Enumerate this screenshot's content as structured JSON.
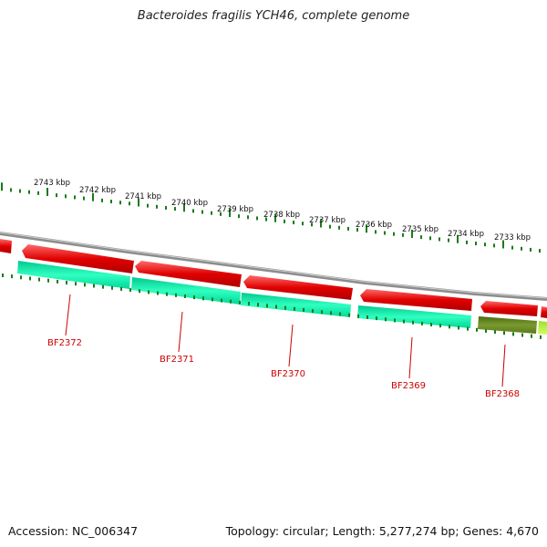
{
  "title": "Bacteroides fragilis YCH46, complete genome",
  "accession": "Accession: NC_006347",
  "summary": "Topology: circular; Length: 5,277,274 bp; Genes: 4,670",
  "colors": {
    "backbone": "#8c8c8c",
    "forward_cds": "#ee0000",
    "reverse_cds": "#00e8a0",
    "reverse_cds_alt": "#6a8a20",
    "tick": "#1a7a1a",
    "gene_label": "#cc0000"
  },
  "scale_labels": [
    "2743 kbp",
    "2742 kbp",
    "2741 kbp",
    "2740 kbp",
    "2739 kbp",
    "2738 kbp",
    "2737 kbp",
    "2736 kbp",
    "2735 kbp",
    "2734 kbp",
    "2733 kbp"
  ],
  "gene_labels": [
    "BF2372",
    "BF2371",
    "BF2370",
    "BF2369",
    "BF2368"
  ]
}
